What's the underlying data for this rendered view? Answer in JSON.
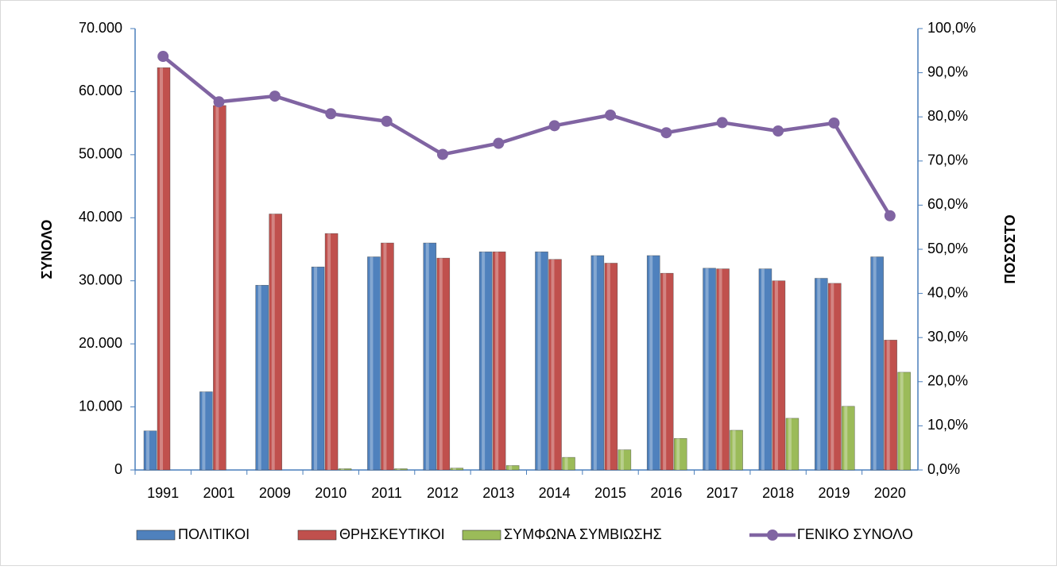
{
  "chart_data": {
    "type": "bar_line",
    "y_label": "ΣΥΝΟΛΟ",
    "y2_label": "ΠΟΣΟΣΤΟ",
    "categories": [
      "1991",
      "2001",
      "2009",
      "2010",
      "2011",
      "2012",
      "2013",
      "2014",
      "2015",
      "2016",
      "2017",
      "2018",
      "2019",
      "2020"
    ],
    "series": [
      {
        "name": "ΠΟΛΙΤΙΚΟΙ",
        "color": "#4f81bd",
        "type": "bar",
        "values": [
          6200,
          12400,
          29300,
          32200,
          33800,
          36000,
          34600,
          34600,
          34000,
          34000,
          32000,
          31900,
          30400,
          33800
        ]
      },
      {
        "name": "ΘΡΗΣΚΕΥΤΙΚΟΙ",
        "color": "#c0504d",
        "type": "bar",
        "values": [
          63800,
          57800,
          40600,
          37500,
          36000,
          33600,
          34600,
          33400,
          32800,
          31200,
          31900,
          30000,
          29600,
          20600
        ]
      },
      {
        "name": "ΣΥΜΦΩΝΑ ΣΥΜΒΙΩΣΗΣ",
        "color": "#9bbb59",
        "type": "bar",
        "values": [
          null,
          null,
          null,
          200,
          200,
          300,
          700,
          2000,
          3200,
          5000,
          6300,
          8200,
          10100,
          15500
        ]
      },
      {
        "name": "ΓΕΝΙΚΟ ΣΥΝΟΛΟ",
        "color": "#8064a2",
        "type": "line",
        "axis": "y2",
        "values": [
          93.7,
          83.4,
          84.7,
          80.7,
          79.0,
          71.5,
          74.0,
          78.0,
          80.4,
          76.4,
          78.7,
          76.8,
          78.6,
          57.6
        ]
      }
    ],
    "ylim": [
      0,
      70000
    ],
    "yticks": [
      0,
      {
        "value": 10000,
        "label": "10.000"
      },
      {
        "value": 20000,
        "label": "20.000"
      },
      {
        "value": 30000,
        "label": "30.000"
      },
      {
        "value": 40000,
        "label": "40.000"
      },
      {
        "value": 50000,
        "label": "50.000"
      },
      {
        "value": 60000,
        "label": "60.000"
      },
      {
        "value": 70000,
        "label": "70.000"
      }
    ],
    "y2lim": [
      0,
      100
    ],
    "y2ticks": [
      {
        "value": 0,
        "label": "0,0%"
      },
      {
        "value": 10,
        "label": "10,0%"
      },
      {
        "value": 20,
        "label": "20,0%"
      },
      {
        "value": 30,
        "label": "30,0%"
      },
      {
        "value": 40,
        "label": "40,0%"
      },
      {
        "value": 50,
        "label": "50,0%"
      },
      {
        "value": 60,
        "label": "60,0%"
      },
      {
        "value": 70,
        "label": "70,0%"
      },
      {
        "value": 80,
        "label": "80,0%"
      },
      {
        "value": 90,
        "label": "90,0%"
      },
      {
        "value": 100,
        "label": "100,0%"
      }
    ],
    "legend": "bottom"
  }
}
